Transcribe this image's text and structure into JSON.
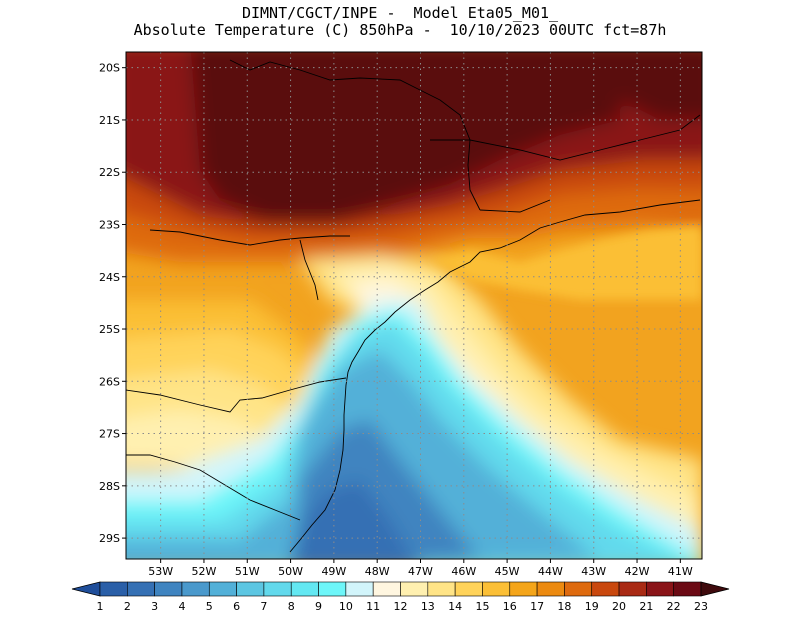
{
  "header": {
    "line1": "DIMNT/CGCT/INPE -  Model Eta05_M01_",
    "line2": "Absolute Temperature (C) 850hPa -  10/10/2023 00UTC fct=87h"
  },
  "map": {
    "lat_labels": [
      "20S",
      "21S",
      "22S",
      "23S",
      "24S",
      "25S",
      "26S",
      "27S",
      "28S",
      "29S"
    ],
    "lon_labels": [
      "53W",
      "52W",
      "51W",
      "50W",
      "49W",
      "48W",
      "47W",
      "46W",
      "45W",
      "44W",
      "43W",
      "42W",
      "41W"
    ],
    "lat_range": [
      -29.4,
      -19.7
    ],
    "lon_range": [
      -53.8,
      -40.5
    ],
    "gridlines": "dotted",
    "variable": "Absolute Temperature",
    "units": "C",
    "level_hPa": 850
  },
  "colorbar": {
    "labels": [
      "1",
      "2",
      "3",
      "4",
      "5",
      "6",
      "7",
      "8",
      "9",
      "10",
      "11",
      "12",
      "13",
      "14",
      "15",
      "16",
      "17",
      "18",
      "19",
      "20",
      "21",
      "22",
      "23"
    ],
    "colors": [
      "#1f4e9a",
      "#2a5fa8",
      "#3570b4",
      "#3f84c0",
      "#4a99cc",
      "#52b0d8",
      "#5cc6e2",
      "#62d9ec",
      "#63e8f2",
      "#6df6f9",
      "#d2f5fb",
      "#fff6e0",
      "#fff0b0",
      "#ffe487",
      "#ffd35a",
      "#fbbf36",
      "#f4a51a",
      "#ec8a10",
      "#de6a0e",
      "#c9480e",
      "#a92a14",
      "#8a1418",
      "#6b0a14",
      "#3f0a0d"
    ]
  }
}
